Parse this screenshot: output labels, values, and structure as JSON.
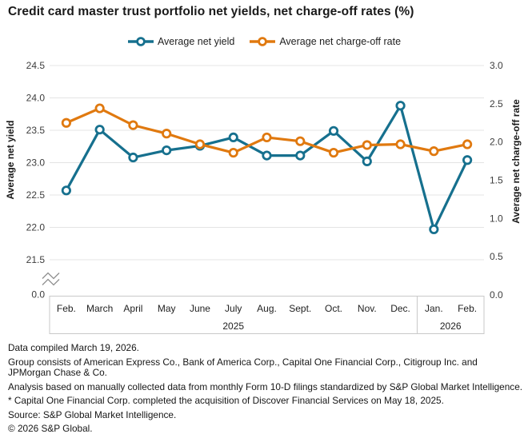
{
  "chart_data": {
    "type": "line",
    "title": "Credit card master trust portfolio net yields, net charge-off rates (%)",
    "categories": [
      "Feb.",
      "March",
      "April",
      "May",
      "June",
      "July",
      "Aug.",
      "Sept.",
      "Oct.",
      "Nov.",
      "Dec.",
      "Jan.",
      "Feb."
    ],
    "years": [
      {
        "label": "2025",
        "from": 0,
        "to": 10
      },
      {
        "label": "2026",
        "from": 11,
        "to": 12
      }
    ],
    "series": [
      {
        "name": "Average net yield",
        "axis": "left",
        "color": "#16708e",
        "values": [
          22.57,
          23.51,
          23.08,
          23.19,
          23.26,
          23.39,
          23.11,
          23.11,
          23.49,
          23.02,
          23.88,
          21.97,
          23.04
        ]
      },
      {
        "name": "Average net charge-off rate",
        "axis": "right",
        "color": "#e0790f",
        "values": [
          2.25,
          2.44,
          2.22,
          2.11,
          1.97,
          1.86,
          2.06,
          2.01,
          1.86,
          1.96,
          1.97,
          1.88,
          1.97
        ]
      }
    ],
    "left_axis": {
      "title": "Average net yield",
      "ticks": [
        24.5,
        24.0,
        23.5,
        23.0,
        22.5,
        22.0,
        21.5,
        0.0
      ],
      "range": [
        21.5,
        24.5
      ],
      "axis_break": true
    },
    "right_axis": {
      "title": "Average net charge-off rate",
      "ticks": [
        3.0,
        2.5,
        2.0,
        1.5,
        1.0,
        0.5,
        0.0
      ],
      "range": [
        0.0,
        3.0
      ]
    },
    "grid": "horizontal",
    "legend_position": "top-center"
  },
  "notes": {
    "lines": [
      "Data compiled March 19, 2026.",
      "Group consists of American Express Co., Bank of America Corp., Capital One Financial Corp., Citigroup Inc. and\nJPMorgan Chase & Co.",
      "Analysis based on manually collected data from monthly Form 10-D filings standardized by S&P Global Market Intelligence.",
      "* Capital One Financial Corp. completed the acquisition of Discover Financial Services on May 18, 2025.",
      "Source: S&P Global Market Intelligence.",
      "© 2026 S&P Global."
    ]
  }
}
